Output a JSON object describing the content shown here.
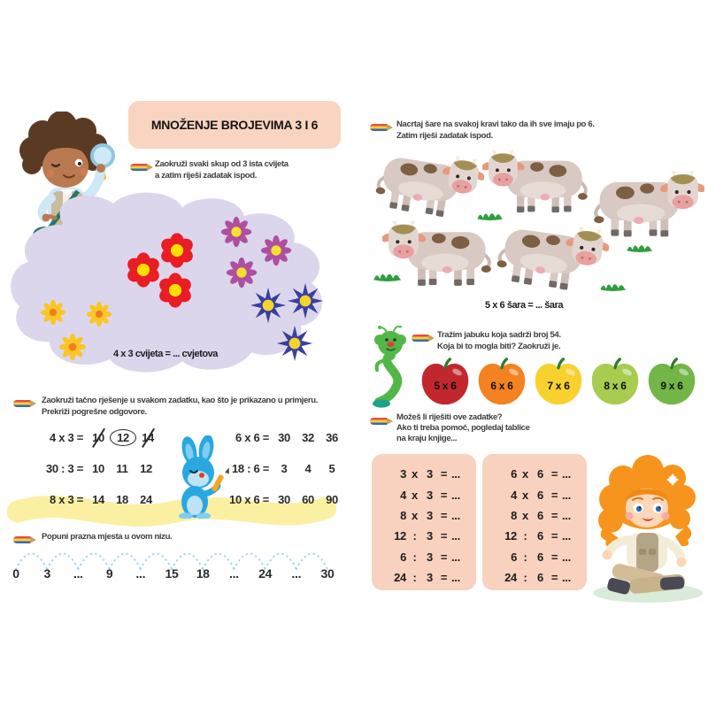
{
  "title": "MNOŽENJE BROJEVIMA 3 I 6",
  "flowers_task": {
    "instruction": [
      "Zaokruži svaki skup od 3 ista cvijeta",
      "a zatim riješi zadatak ispod."
    ],
    "equation": "4 x 3 cvijeta = ... cvjetova"
  },
  "circle_task": {
    "instruction": [
      "Zaokruži tačno rješenje u svakom zadatku, kao što je prikazano u primjeru.",
      "Prekriži pogrešne odgovore."
    ],
    "columns": [
      [
        {
          "expr": "4 x 3 =",
          "options": [
            {
              "t": "10",
              "deco": "strike"
            },
            {
              "t": "12",
              "deco": "circle"
            },
            {
              "t": "14",
              "deco": "strike"
            }
          ]
        },
        {
          "expr": "30 : 3 =",
          "options": [
            {
              "t": "10",
              "deco": "none"
            },
            {
              "t": "11",
              "deco": "none"
            },
            {
              "t": "12",
              "deco": "none"
            }
          ]
        },
        {
          "expr": "8 x 3 =",
          "options": [
            {
              "t": "14",
              "deco": "none"
            },
            {
              "t": "18",
              "deco": "none"
            },
            {
              "t": "24",
              "deco": "none"
            }
          ]
        }
      ],
      [
        {
          "expr": "6 x 6 =",
          "options": [
            {
              "t": "30",
              "deco": "none"
            },
            {
              "t": "32",
              "deco": "none"
            },
            {
              "t": "36",
              "deco": "none"
            }
          ]
        },
        {
          "expr": "18 : 6 =",
          "options": [
            {
              "t": "3",
              "deco": "none"
            },
            {
              "t": "4",
              "deco": "none"
            },
            {
              "t": "5",
              "deco": "none"
            }
          ]
        },
        {
          "expr": "10 x 6 =",
          "options": [
            {
              "t": "30",
              "deco": "none"
            },
            {
              "t": "60",
              "deco": "none"
            },
            {
              "t": "90",
              "deco": "none"
            }
          ]
        }
      ]
    ]
  },
  "sequence_task": {
    "instruction": "Popuni prazna mjesta u ovom nizu.",
    "items": [
      "0",
      "3",
      "...",
      "9",
      "...",
      "15",
      "18",
      "...",
      "24",
      "...",
      "30"
    ]
  },
  "cows_task": {
    "instruction": [
      "Nacrtaj šare na svakoj kravi tako da ih sve imaju po 6.",
      "Zatim riješi zadatak ispod."
    ],
    "equation": "5 x 6 šara = ... šara"
  },
  "apples_task": {
    "instruction": [
      "Tražim jabuku koja sadrži broj 54.",
      "Koja bi to mogla biti? Zaokruži je."
    ],
    "apples": [
      {
        "label": "5 x 6",
        "color": "#c1272d"
      },
      {
        "label": "6 x 6",
        "color": "#f58220"
      },
      {
        "label": "7 x 6",
        "color": "#f8d12f"
      },
      {
        "label": "8 x 6",
        "color": "#a8cc50"
      },
      {
        "label": "9 x 6",
        "color": "#72b647"
      }
    ]
  },
  "tables_task": {
    "instruction": [
      "Možeš li riješiti ove zadatke?",
      "Ako ti treba pomoć, pogledaj tablice",
      "na kraju knjige..."
    ],
    "left_table": [
      [
        "3",
        "x",
        "3",
        "=",
        "..."
      ],
      [
        "4",
        "x",
        "3",
        "=",
        "..."
      ],
      [
        "8",
        "x",
        "3",
        "=",
        "..."
      ],
      [
        "12",
        ":",
        "3",
        "=",
        "..."
      ],
      [
        "6",
        ":",
        "3",
        "=",
        "..."
      ],
      [
        "24",
        ":",
        "3",
        "=",
        "..."
      ]
    ],
    "right_table": [
      [
        "6",
        "x",
        "6",
        "=",
        "..."
      ],
      [
        "4",
        "x",
        "6",
        "=",
        "..."
      ],
      [
        "8",
        "x",
        "6",
        "=",
        "..."
      ],
      [
        "12",
        ":",
        "6",
        "=",
        "..."
      ],
      [
        "6",
        ":",
        "6",
        "=",
        "..."
      ],
      [
        "24",
        ":",
        "6",
        "=",
        "..."
      ]
    ]
  },
  "colors": {
    "accent_peach": "#f9d5c1",
    "blob_lavender": "#dcd6ec",
    "band_yellow": "#fbf0a2",
    "arc_blue": "#9fd4ee"
  }
}
